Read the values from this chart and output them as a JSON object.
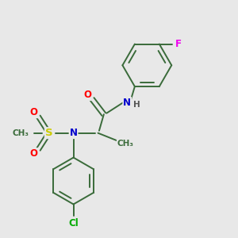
{
  "background_color": "#e8e8e8",
  "bond_color": "#3a6b3a",
  "atom_colors": {
    "N": "#0000cc",
    "O": "#ff0000",
    "S": "#cccc00",
    "Cl": "#00aa00",
    "F": "#ee00ee",
    "H": "#555555",
    "C": "#3a6b3a"
  },
  "font_size": 8.5,
  "bond_width": 1.4
}
